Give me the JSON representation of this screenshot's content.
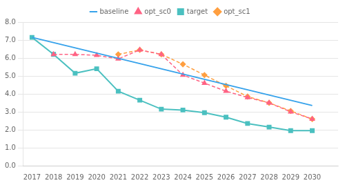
{
  "chart_data": {
    "type": "line",
    "series": [
      {
        "name": "baseline",
        "x": [
          2017,
          2030
        ],
        "values": [
          7.15,
          3.35
        ],
        "marker": "none",
        "line_style": "solid"
      },
      {
        "name": "opt_sc0",
        "x": [
          2018,
          2019,
          2020,
          2021,
          2022,
          2023,
          2024,
          2025,
          2026,
          2027,
          2028,
          2029,
          2030
        ],
        "values": [
          6.2,
          6.2,
          6.15,
          5.95,
          6.45,
          6.2,
          5.05,
          4.6,
          4.15,
          3.8,
          3.5,
          3.0,
          2.6
        ],
        "marker": "triangle",
        "line_style": "dashed"
      },
      {
        "name": "target",
        "x": [
          2017,
          2018,
          2019,
          2020,
          2021,
          2022,
          2023,
          2024,
          2025,
          2026,
          2027,
          2028,
          2029,
          2030
        ],
        "values": [
          7.15,
          6.2,
          5.15,
          5.4,
          4.15,
          3.65,
          3.15,
          3.1,
          2.95,
          2.7,
          2.35,
          2.15,
          1.95,
          1.95
        ],
        "marker": "square",
        "line_style": "solid"
      },
      {
        "name": "opt_sc1",
        "x": [
          2021,
          2022,
          2023,
          2024,
          2025,
          2026,
          2027,
          2028,
          2029,
          2030
        ],
        "values": [
          6.2,
          6.45,
          6.2,
          5.65,
          5.05,
          4.45,
          3.85,
          3.5,
          3.05,
          2.6
        ],
        "marker": "diamond",
        "line_style": "dashed"
      }
    ],
    "xlim": [
      2016.6,
      2031.2
    ],
    "xticks": [
      2017,
      2018,
      2019,
      2020,
      2021,
      2022,
      2023,
      2024,
      2025,
      2026,
      2027,
      2028,
      2029,
      2030
    ],
    "ylim": [
      0.0,
      8.0
    ],
    "yticks": [
      {
        "value": 0,
        "label": "0.0"
      },
      {
        "value": 1,
        "label": "1.0"
      },
      {
        "value": 2,
        "label": "2.0"
      },
      {
        "value": 3,
        "label": "3.0"
      },
      {
        "value": 4,
        "label": "4.0"
      },
      {
        "value": 5,
        "label": "5.0"
      },
      {
        "value": 6,
        "label": "6.0"
      },
      {
        "value": 7,
        "label": "7.0"
      },
      {
        "value": 8,
        "label": "8.0"
      }
    ],
    "grid": "y",
    "legend": "top"
  }
}
